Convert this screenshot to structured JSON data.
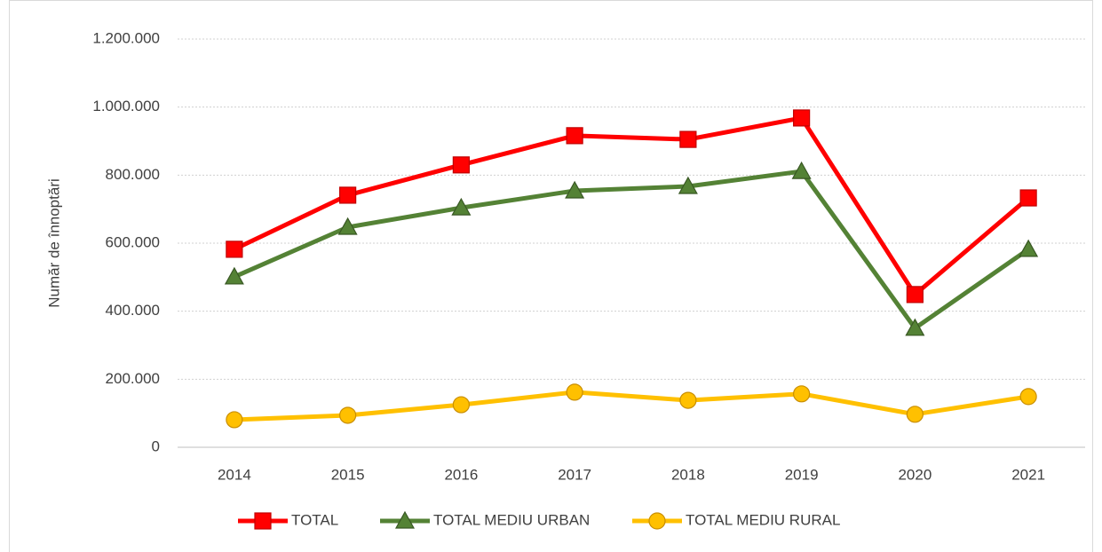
{
  "chart_data": {
    "type": "line",
    "y_label": "Număr de înnoptări",
    "categories": [
      "2014",
      "2015",
      "2016",
      "2017",
      "2018",
      "2019",
      "2020",
      "2021"
    ],
    "series": [
      {
        "name": "TOTAL",
        "color": "#ff0000",
        "marker": "square",
        "values": [
          582000,
          741000,
          830000,
          916000,
          905000,
          968000,
          449000,
          733000
        ]
      },
      {
        "name": "TOTAL MEDIU URBAN",
        "color": "#548235",
        "marker": "triangle",
        "values": [
          501000,
          647000,
          704000,
          754000,
          767000,
          811000,
          350000,
          582000
        ]
      },
      {
        "name": "TOTAL MEDIU RURAL",
        "color": "#ffc000",
        "marker": "circle",
        "values": [
          81000,
          94000,
          125000,
          162000,
          138000,
          157000,
          97000,
          149000
        ]
      }
    ],
    "ylim": [
      0,
      1200000
    ],
    "yticks": [
      0,
      {
        "value": 200000,
        "label": "200.000"
      },
      {
        "value": 400000,
        "label": "400.000"
      },
      {
        "value": 600000,
        "label": "600.000"
      },
      {
        "value": 800000,
        "label": "800.000"
      },
      {
        "value": 1000000,
        "label": "1.000.000"
      },
      {
        "value": 1200000,
        "label": "1.200.000"
      }
    ],
    "grid": true,
    "legend": "bottom"
  }
}
